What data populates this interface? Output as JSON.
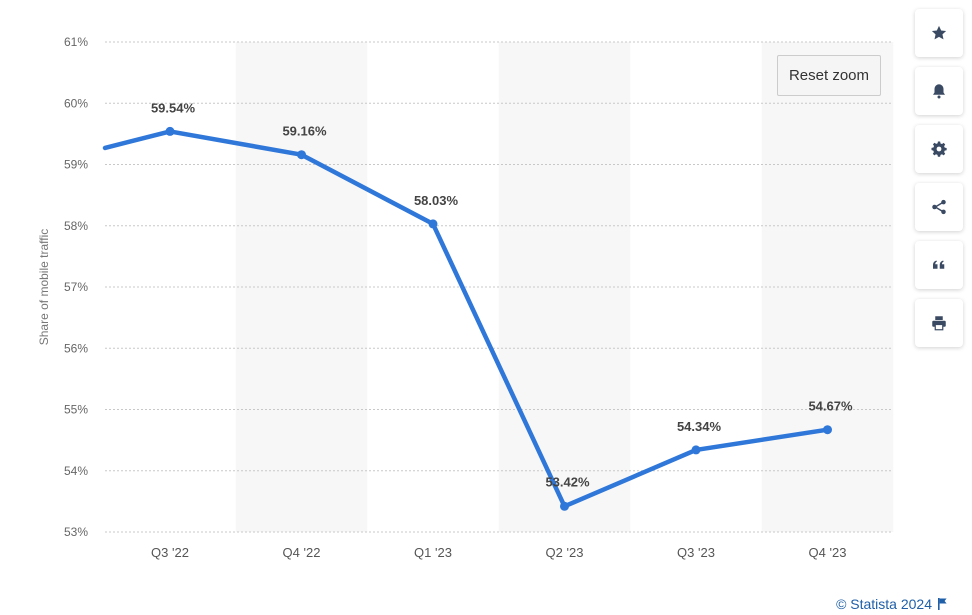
{
  "chart_data": {
    "type": "line",
    "categories": [
      "Q3 '22",
      "Q4 '22",
      "Q1 '23",
      "Q2 '23",
      "Q3 '23",
      "Q4 '23"
    ],
    "series": [
      {
        "values": [
          59.54,
          59.16,
          58.03,
          53.42,
          54.34,
          54.67
        ],
        "labels": [
          "59.54%",
          "59.16%",
          "58.03%",
          "53.42%",
          "54.34%",
          "54.67%"
        ],
        "color": "#2f77d9"
      }
    ],
    "ylabel": "Share of mobile traffic",
    "ylim": [
      53,
      61
    ],
    "yticks": [
      53,
      54,
      55,
      56,
      57,
      58,
      59,
      60,
      61
    ],
    "ytick_labels": [
      "53%",
      "54%",
      "55%",
      "56%",
      "57%",
      "58%",
      "59%",
      "60%",
      "61%"
    ],
    "grid": true,
    "band_color": "#f7f7f7"
  },
  "controls": {
    "reset_zoom": "Reset zoom"
  },
  "toolbar": {
    "buttons": [
      {
        "icon": "star-icon"
      },
      {
        "icon": "bell-icon"
      },
      {
        "icon": "gear-icon"
      },
      {
        "icon": "share-icon"
      },
      {
        "icon": "quote-icon"
      },
      {
        "icon": "print-icon"
      }
    ],
    "icon_color": "#3b4a63"
  },
  "credits": {
    "text": "© Statista 2024",
    "color": "#1f5fa8"
  }
}
